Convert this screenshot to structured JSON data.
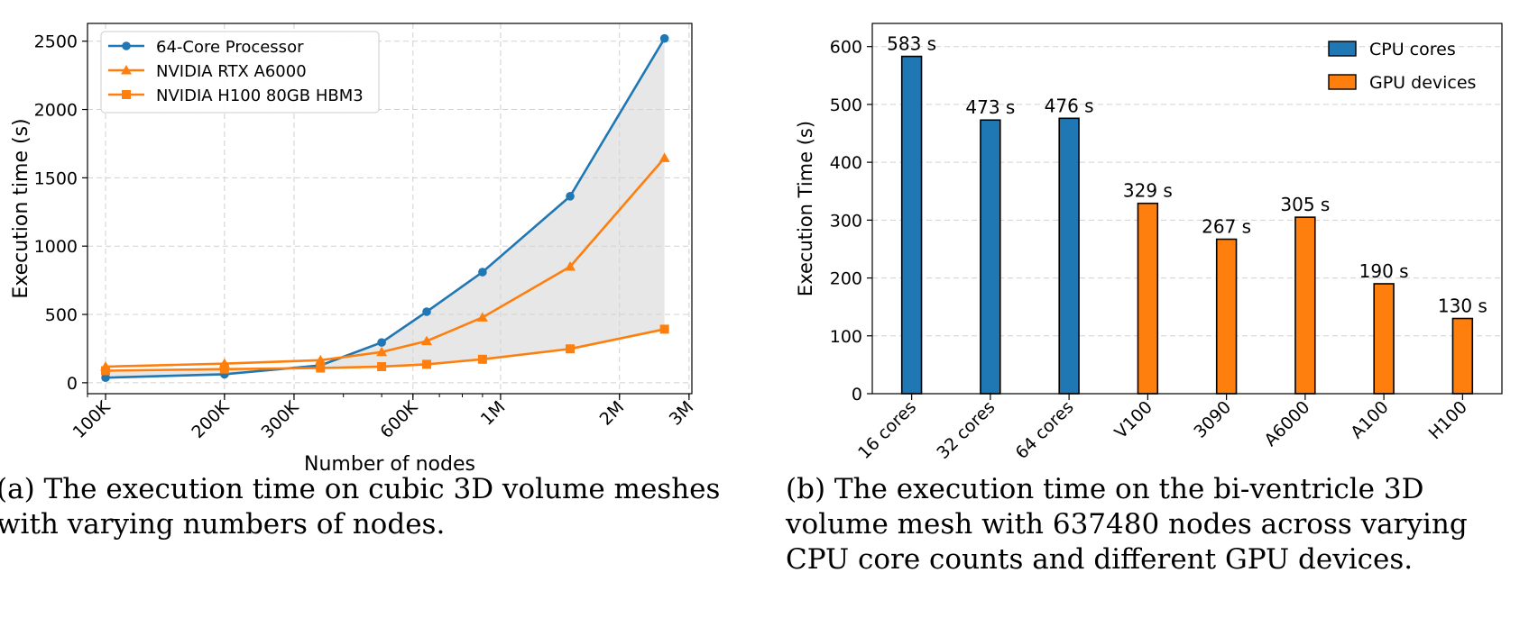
{
  "chart_data": [
    {
      "id": "a",
      "type": "line",
      "xscale": "log",
      "x": [
        100000,
        200000,
        350000,
        500000,
        650000,
        900000,
        1500000,
        2600000
      ],
      "xticks": [
        {
          "value": 100000,
          "label": "100K"
        },
        {
          "value": 200000,
          "label": "200K"
        },
        {
          "value": 300000,
          "label": "300K"
        },
        {
          "value": 600000,
          "label": "600K"
        },
        {
          "value": 1000000,
          "label": "1M"
        },
        {
          "value": 2000000,
          "label": "2M"
        },
        {
          "value": 3000000,
          "label": "3M"
        }
      ],
      "xlim": [
        90000,
        3050000
      ],
      "ylim": [
        -80,
        2630
      ],
      "yticks": [
        0,
        500,
        1000,
        1500,
        2000,
        2500
      ],
      "xlabel": "Number of nodes",
      "ylabel": "Execution time (s)",
      "grid": true,
      "legend_position": "top-left",
      "shaded_between": [
        "64-Core Processor",
        "NVIDIA H100 80GB HBM3"
      ],
      "series": [
        {
          "name": "64-Core Processor",
          "marker": "circle",
          "color": "#1f77b4",
          "values": [
            37,
            62,
            127,
            295,
            520,
            810,
            1365,
            2520
          ]
        },
        {
          "name": "NVIDIA RTX A6000",
          "marker": "triangle",
          "color": "#ff7f0e",
          "values": [
            118,
            140,
            165,
            225,
            305,
            478,
            850,
            1645
          ]
        },
        {
          "name": "NVIDIA H100 80GB HBM3",
          "marker": "square",
          "color": "#ff7f0e",
          "values": [
            88,
            100,
            108,
            118,
            135,
            172,
            248,
            392
          ]
        }
      ],
      "caption": "(a) The execution time on cubic 3D volume meshes with varying numbers of nodes."
    },
    {
      "id": "b",
      "type": "bar",
      "categories": [
        "16 cores",
        "32 cores",
        "64 cores",
        "V100",
        "3090",
        "A6000",
        "A100",
        "H100"
      ],
      "values": [
        583,
        473,
        476,
        329,
        267,
        305,
        190,
        130
      ],
      "data_labels": [
        "583 s",
        "473 s",
        "476 s",
        "329 s",
        "267 s",
        "305 s",
        "190 s",
        "130 s"
      ],
      "groups": [
        "CPU cores",
        "CPU cores",
        "CPU cores",
        "GPU devices",
        "GPU devices",
        "GPU devices",
        "GPU devices",
        "GPU devices"
      ],
      "ylim": [
        0,
        640
      ],
      "yticks": [
        0,
        100,
        200,
        300,
        400,
        500,
        600
      ],
      "xlabel": "",
      "ylabel": "Execution Time (s)",
      "grid": true,
      "legend_position": "top-right",
      "legend": [
        {
          "name": "CPU cores",
          "color": "#1f77b4"
        },
        {
          "name": "GPU devices",
          "color": "#ff7f0e"
        }
      ],
      "caption": "(b) The execution time on the bi-ventricle 3D volume mesh with 637480 nodes across varying CPU core counts and different GPU devices."
    }
  ]
}
